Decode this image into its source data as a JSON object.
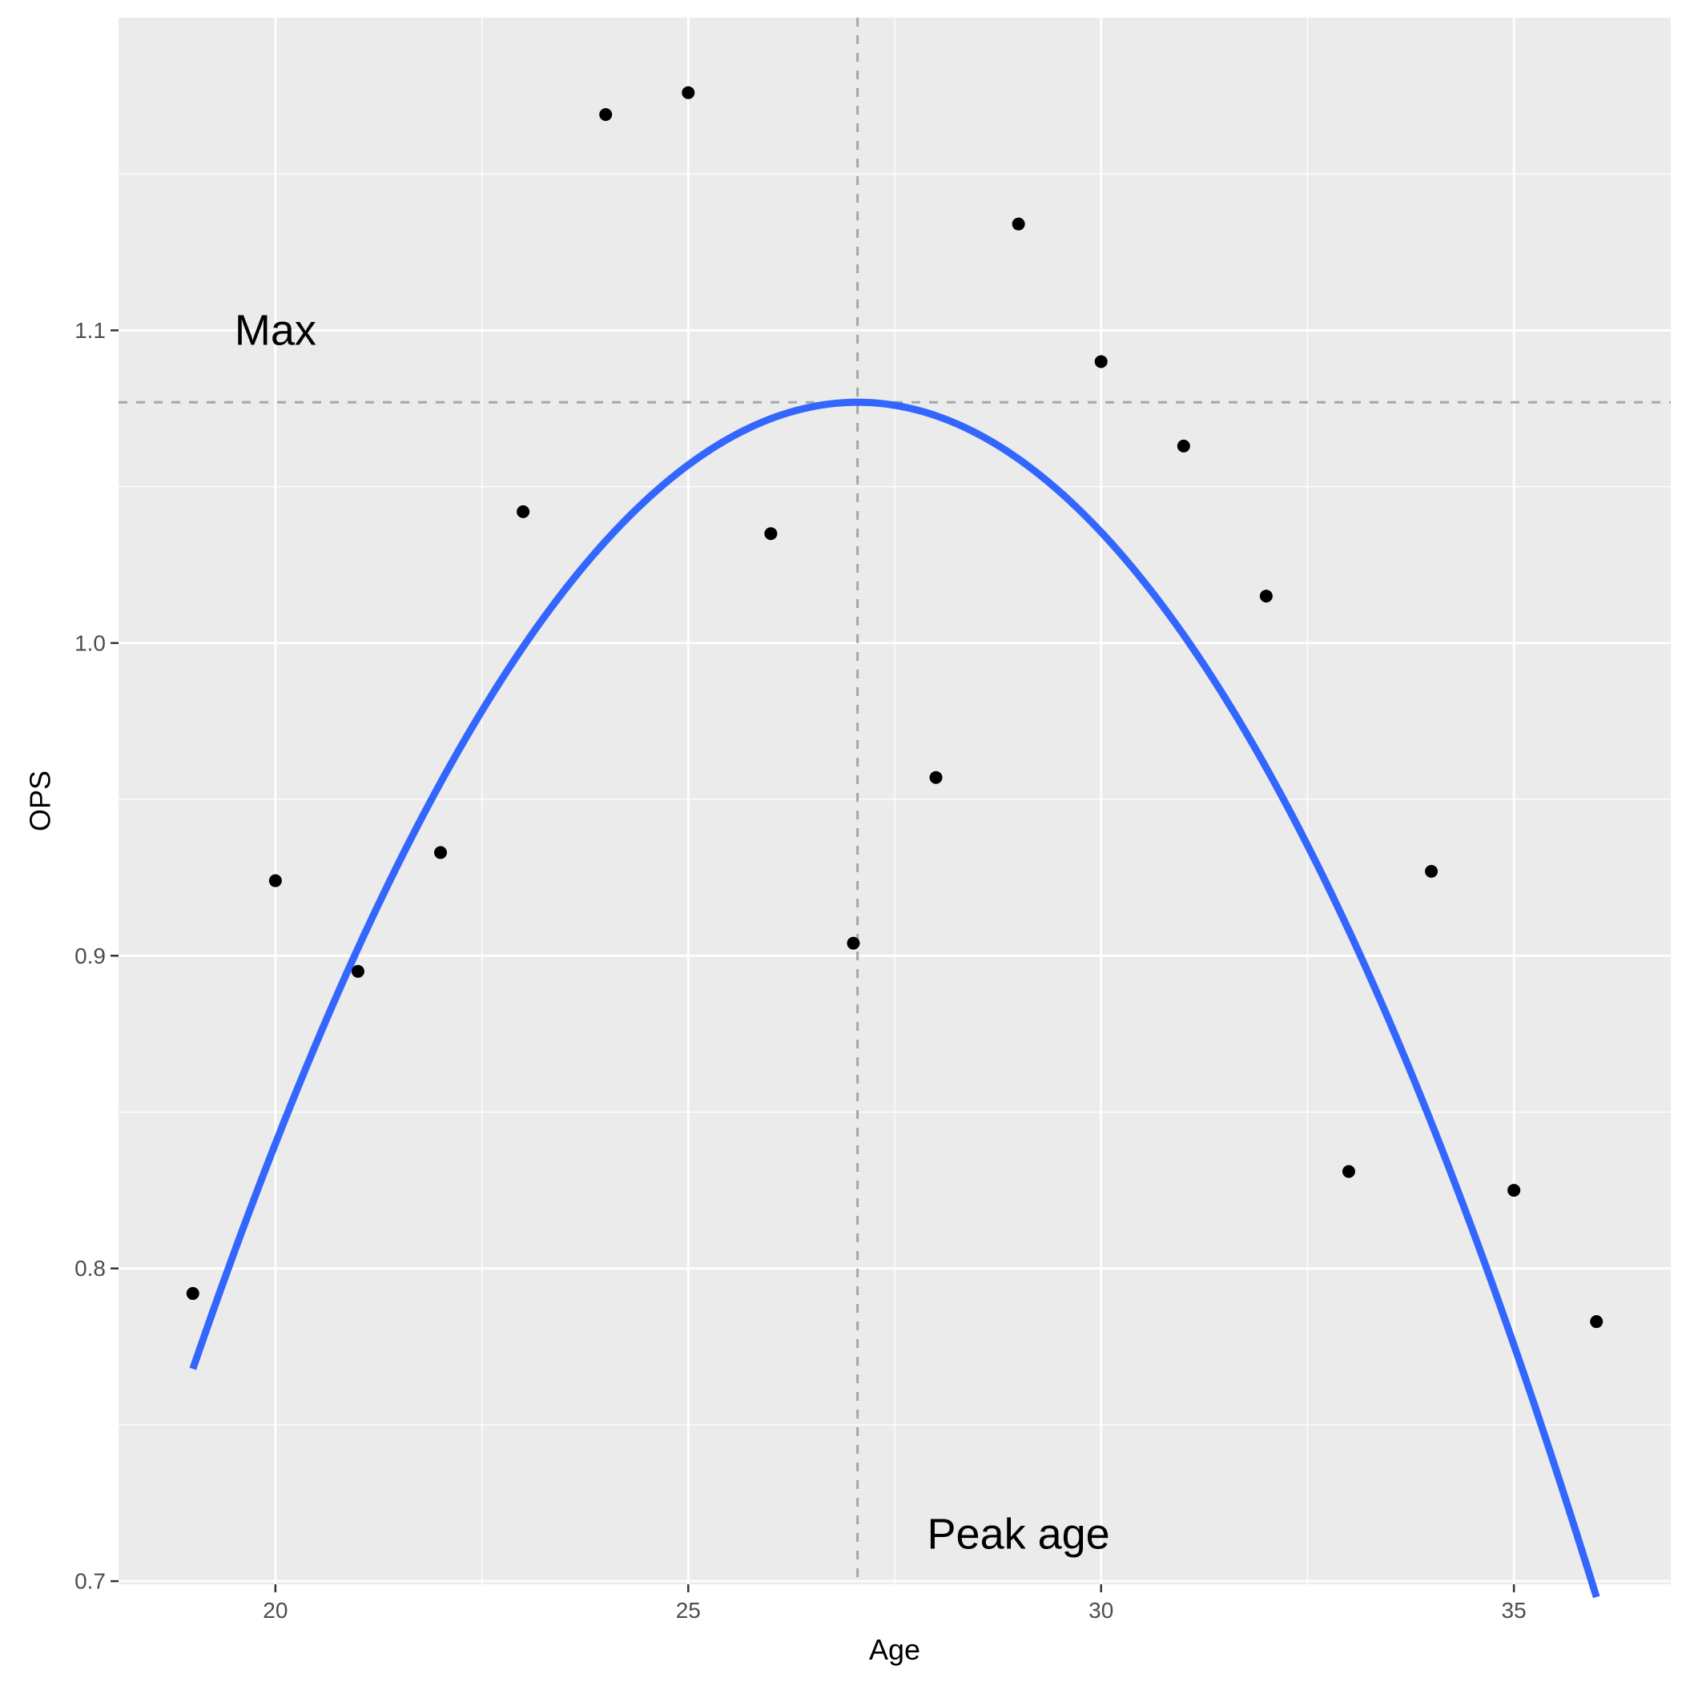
{
  "chart_data": {
    "type": "scatter",
    "xlabel": "Age",
    "ylabel": "OPS",
    "xlim": [
      18.1,
      36.9
    ],
    "ylim": [
      0.699,
      1.2
    ],
    "x_ticks": [
      20,
      25,
      30,
      35
    ],
    "y_ticks": [
      0.7,
      0.8,
      0.9,
      1.0,
      1.1
    ],
    "x_tick_labels": [
      "20",
      "25",
      "30",
      "35"
    ],
    "y_tick_labels": [
      "0.7",
      "0.8",
      "0.9",
      "1.0",
      "1.1"
    ],
    "grid": true,
    "points": [
      {
        "x": 19,
        "y": 0.792
      },
      {
        "x": 20,
        "y": 0.924
      },
      {
        "x": 21,
        "y": 0.895
      },
      {
        "x": 22,
        "y": 0.933
      },
      {
        "x": 23,
        "y": 1.042
      },
      {
        "x": 24,
        "y": 1.169
      },
      {
        "x": 25,
        "y": 1.176
      },
      {
        "x": 26,
        "y": 1.035
      },
      {
        "x": 27,
        "y": 0.904
      },
      {
        "x": 28,
        "y": 0.957
      },
      {
        "x": 29,
        "y": 1.134
      },
      {
        "x": 30,
        "y": 1.09
      },
      {
        "x": 31,
        "y": 1.063
      },
      {
        "x": 32,
        "y": 1.015
      },
      {
        "x": 33,
        "y": 0.831
      },
      {
        "x": 34,
        "y": 0.927
      },
      {
        "x": 35,
        "y": 0.825
      },
      {
        "x": 36,
        "y": 0.783
      }
    ],
    "fit_curve": {
      "type": "quadratic",
      "x_range": [
        19,
        36
      ],
      "peak_x": 27.05,
      "peak_y": 1.077,
      "curvature": -0.00477,
      "color": "#3366ff"
    },
    "reference_lines": [
      {
        "orientation": "vertical",
        "value": 27.05,
        "style": "dashed",
        "color": "#a6a6a6"
      },
      {
        "orientation": "horizontal",
        "value": 1.077,
        "style": "dashed",
        "color": "#a6a6a6"
      }
    ],
    "annotations": [
      {
        "text": "Max",
        "x": 20,
        "y": 1.1
      },
      {
        "text": "Peak age",
        "x": 29,
        "y": 0.715
      }
    ],
    "colors": {
      "panel_background": "#ebebeb",
      "grid": "#ffffff",
      "point": "#000000"
    }
  }
}
